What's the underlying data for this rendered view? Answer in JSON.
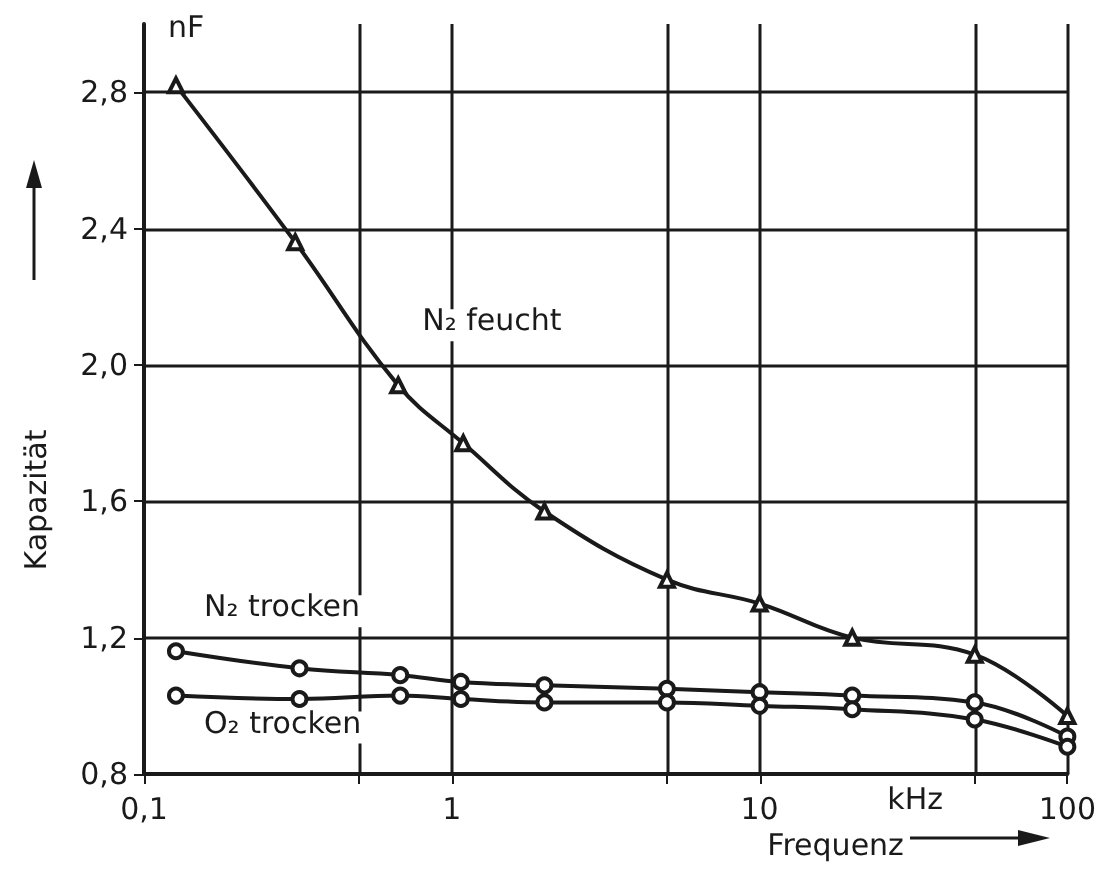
{
  "chart_data": {
    "type": "line",
    "xlabel": "Frequenz",
    "ylabel": "Kapazität",
    "annotations": [
      "nF",
      "kHz"
    ],
    "log": "x",
    "grid": true,
    "line_style": "solid",
    "xlim": [
      0.1,
      100
    ],
    "xticks": [
      {
        "value": 0.1,
        "label": "0,1"
      },
      {
        "value": 0.5,
        "label": null
      },
      1,
      {
        "value": 5,
        "label": null
      },
      10,
      {
        "value": 50,
        "label": null
      },
      100
    ],
    "ylim": [
      0.8,
      3.0
    ],
    "yticks": [
      {
        "value": 0.8,
        "label": "0,8"
      },
      {
        "value": 1.2,
        "label": "1,2"
      },
      {
        "value": 1.6,
        "label": "1,6"
      },
      {
        "value": 2.0,
        "label": "2,0"
      },
      {
        "value": 2.4,
        "label": "2,4"
      },
      {
        "value": 2.8,
        "label": "2,8"
      }
    ],
    "series": [
      {
        "name": "N₂ feucht",
        "color": "#1a1a1a",
        "marker": "triangle",
        "x": [
          0.127,
          0.31,
          0.67,
          1.09,
          2,
          5,
          10,
          20,
          50,
          100
        ],
        "values": [
          2.82,
          2.36,
          1.94,
          1.77,
          1.57,
          1.37,
          1.3,
          1.2,
          1.15,
          0.97
        ]
      },
      {
        "name": "N₂ trocken",
        "color": "#1a1a1a",
        "marker": "circle",
        "x": [
          0.127,
          0.32,
          0.68,
          1.07,
          2,
          5,
          10,
          20,
          50,
          100
        ],
        "values": [
          1.16,
          1.11,
          1.09,
          1.07,
          1.06,
          1.05,
          1.04,
          1.03,
          1.01,
          0.91
        ]
      },
      {
        "name": "O₂ trocken",
        "color": "#1a1a1a",
        "marker": "circle",
        "x": [
          0.127,
          0.32,
          0.68,
          1.07,
          2,
          5,
          10,
          20,
          50,
          100
        ],
        "values": [
          1.03,
          1.02,
          1.03,
          1.02,
          1.01,
          1.01,
          1.0,
          0.99,
          0.96,
          0.88
        ]
      }
    ]
  }
}
